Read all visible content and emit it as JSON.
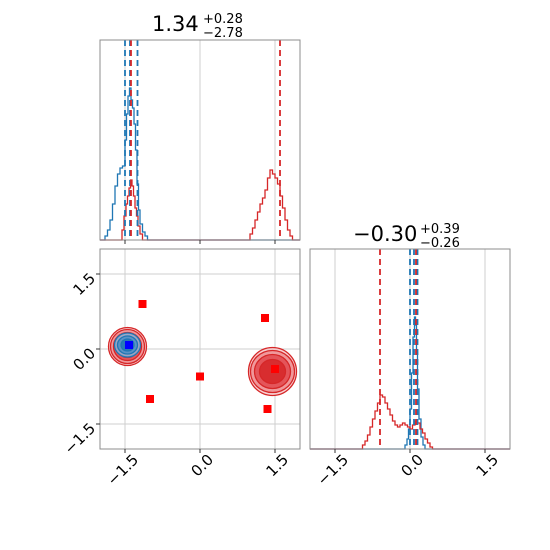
{
  "chart_data": {
    "type": "corner",
    "grid": true,
    "series": [
      {
        "name": "",
        "color": "#1f77b4"
      },
      {
        "name": "",
        "color": "#d62728"
      }
    ],
    "axis_range": [
      -2.0,
      2.0
    ],
    "ticks": [
      {
        "value": -1.5,
        "label": "−1.5"
      },
      {
        "value": 0.0,
        "label": "0.0"
      },
      {
        "value": 1.5,
        "label": "1.5"
      }
    ],
    "panels": [
      {
        "id": "p1",
        "type": "histogram",
        "title": {
          "value": "1.34",
          "plus": "+0.28",
          "minus": "−2.78"
        },
        "ylim": [
          0,
          1.0
        ],
        "quantile_lines": {
          "blue": [
            -1.5,
            -1.4,
            -1.25
          ],
          "red": [
            -1.38,
            1.6
          ]
        },
        "hist_blue": [
          [
            -2.0,
            0.0
          ],
          [
            -1.9,
            0.02
          ],
          [
            -1.85,
            0.05
          ],
          [
            -1.8,
            0.1
          ],
          [
            -1.75,
            0.18
          ],
          [
            -1.7,
            0.27
          ],
          [
            -1.65,
            0.33
          ],
          [
            -1.6,
            0.36
          ],
          [
            -1.55,
            0.37
          ],
          [
            -1.5,
            0.5
          ],
          [
            -1.47,
            0.63
          ],
          [
            -1.44,
            0.72
          ],
          [
            -1.41,
            0.76
          ],
          [
            -1.38,
            0.7
          ],
          [
            -1.35,
            0.66
          ],
          [
            -1.32,
            0.58
          ],
          [
            -1.29,
            0.45
          ],
          [
            -1.26,
            0.28
          ],
          [
            -1.23,
            0.15
          ],
          [
            -1.2,
            0.08
          ],
          [
            -1.15,
            0.04
          ],
          [
            -1.1,
            0.02
          ],
          [
            -1.05,
            0.0
          ],
          [
            2.0,
            0.0
          ]
        ],
        "hist_red": [
          [
            -2.0,
            0.0
          ],
          [
            -1.6,
            0.0
          ],
          [
            -1.56,
            0.05
          ],
          [
            -1.52,
            0.12
          ],
          [
            -1.48,
            0.18
          ],
          [
            -1.45,
            0.22
          ],
          [
            -1.42,
            0.26
          ],
          [
            -1.39,
            0.3
          ],
          [
            -1.36,
            0.27
          ],
          [
            -1.33,
            0.22
          ],
          [
            -1.3,
            0.16
          ],
          [
            -1.27,
            0.12
          ],
          [
            -1.24,
            0.07
          ],
          [
            -1.2,
            0.03
          ],
          [
            -1.15,
            0.0
          ],
          [
            0.95,
            0.0
          ],
          [
            1.0,
            0.03
          ],
          [
            1.05,
            0.06
          ],
          [
            1.1,
            0.1
          ],
          [
            1.15,
            0.14
          ],
          [
            1.2,
            0.18
          ],
          [
            1.25,
            0.21
          ],
          [
            1.3,
            0.25
          ],
          [
            1.35,
            0.31
          ],
          [
            1.4,
            0.35
          ],
          [
            1.45,
            0.33
          ],
          [
            1.5,
            0.31
          ],
          [
            1.55,
            0.28
          ],
          [
            1.6,
            0.22
          ],
          [
            1.65,
            0.16
          ],
          [
            1.7,
            0.1
          ],
          [
            1.75,
            0.05
          ],
          [
            1.8,
            0.02
          ],
          [
            1.85,
            0.0
          ],
          [
            2.0,
            0.0
          ]
        ]
      },
      {
        "id": "p3",
        "type": "histogram",
        "title": {
          "value": "−0.30",
          "plus": "+0.39",
          "minus": "−0.26"
        },
        "ylim": [
          0,
          1.0
        ],
        "quantile_lines": {
          "blue": [
            0.0,
            0.08,
            0.15
          ],
          "red": [
            -0.6,
            0.12
          ]
        },
        "hist_blue": [
          [
            -2.0,
            0.0
          ],
          [
            -0.15,
            0.0
          ],
          [
            -0.1,
            0.02
          ],
          [
            -0.06,
            0.05
          ],
          [
            -0.03,
            0.1
          ],
          [
            0.0,
            0.2
          ],
          [
            0.03,
            0.38
          ],
          [
            0.06,
            0.56
          ],
          [
            0.09,
            0.66
          ],
          [
            0.11,
            0.62
          ],
          [
            0.13,
            0.48
          ],
          [
            0.15,
            0.3
          ],
          [
            0.18,
            0.15
          ],
          [
            0.22,
            0.06
          ],
          [
            0.26,
            0.02
          ],
          [
            0.3,
            0.0
          ],
          [
            2.0,
            0.0
          ]
        ],
        "hist_red": [
          [
            -2.0,
            0.0
          ],
          [
            -1.0,
            0.0
          ],
          [
            -0.95,
            0.02
          ],
          [
            -0.9,
            0.04
          ],
          [
            -0.85,
            0.07
          ],
          [
            -0.8,
            0.11
          ],
          [
            -0.75,
            0.15
          ],
          [
            -0.7,
            0.19
          ],
          [
            -0.65,
            0.23
          ],
          [
            -0.6,
            0.27
          ],
          [
            -0.55,
            0.26
          ],
          [
            -0.5,
            0.23
          ],
          [
            -0.45,
            0.2
          ],
          [
            -0.4,
            0.17
          ],
          [
            -0.35,
            0.14
          ],
          [
            -0.3,
            0.12
          ],
          [
            -0.25,
            0.11
          ],
          [
            -0.2,
            0.12
          ],
          [
            -0.15,
            0.13
          ],
          [
            -0.1,
            0.12
          ],
          [
            -0.05,
            0.11
          ],
          [
            0.0,
            0.1
          ],
          [
            0.05,
            0.12
          ],
          [
            0.1,
            0.14
          ],
          [
            0.15,
            0.13
          ],
          [
            0.2,
            0.1
          ],
          [
            0.25,
            0.08
          ],
          [
            0.3,
            0.05
          ],
          [
            0.35,
            0.03
          ],
          [
            0.4,
            0.01
          ],
          [
            0.45,
            0.0
          ],
          [
            2.0,
            0.0
          ]
        ]
      },
      {
        "id": "p2",
        "type": "scatter_contour",
        "x_tick_labels_rotated": true,
        "y_tick_labels_rotated": true,
        "blobs": [
          {
            "series": "red",
            "cx": -1.45,
            "cy": 0.05,
            "rx": [
              0.38,
              0.34,
              0.28,
              0.22
            ],
            "ry": [
              0.38,
              0.34,
              0.28,
              0.22
            ]
          },
          {
            "series": "red",
            "cx": 1.45,
            "cy": -0.45,
            "rx": [
              0.48,
              0.44,
              0.36,
              0.26
            ],
            "ry": [
              0.48,
              0.42,
              0.34,
              0.24
            ]
          },
          {
            "series": "blue",
            "cx": -1.45,
            "cy": 0.08,
            "rx": [
              0.26,
              0.2,
              0.13
            ],
            "ry": [
              0.24,
              0.18,
              0.12
            ]
          }
        ],
        "red_points": [
          {
            "x": -1.15,
            "y": 0.9
          },
          {
            "x": -1.0,
            "y": -1.0
          },
          {
            "x": 0.0,
            "y": -0.55
          },
          {
            "x": 1.3,
            "y": 0.62
          },
          {
            "x": 1.35,
            "y": -1.2
          },
          {
            "x": 1.5,
            "y": -0.4
          }
        ],
        "blue_points": [
          {
            "x": -1.42,
            "y": 0.08
          }
        ]
      }
    ]
  }
}
